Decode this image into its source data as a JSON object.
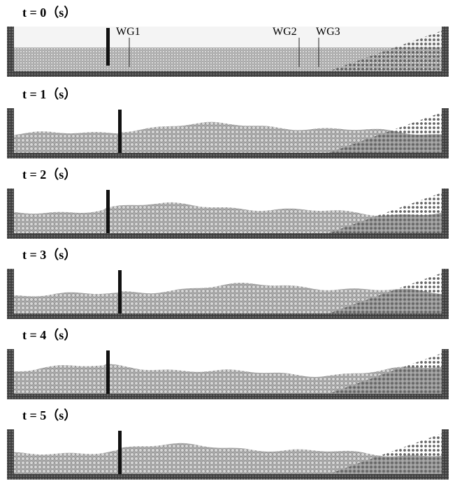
{
  "figure": {
    "frames": [
      {
        "title": "t = 0（s）",
        "state": "initial"
      },
      {
        "title": "t = 1（s）",
        "state": "wave"
      },
      {
        "title": "t = 2（s）",
        "state": "wave"
      },
      {
        "title": "t = 3（s）",
        "state": "wave"
      },
      {
        "title": "t = 4（s）",
        "state": "wave"
      },
      {
        "title": "t = 5（s）",
        "state": "wave"
      }
    ],
    "gauges": [
      {
        "label": "WG1"
      },
      {
        "label": "WG2"
      },
      {
        "label": "WG3"
      }
    ],
    "colors": {
      "tank_wall": "#4d4d4d",
      "tank_floor": "#3a3a3a",
      "water_fill": "#b9b9b9",
      "water_particle": "#d2d2d2",
      "slope_particle": "#6e6e6e",
      "paddle": "#111111",
      "gauge_line": "#222222",
      "background": "#ffffff",
      "air": "#f4f4f4"
    }
  }
}
